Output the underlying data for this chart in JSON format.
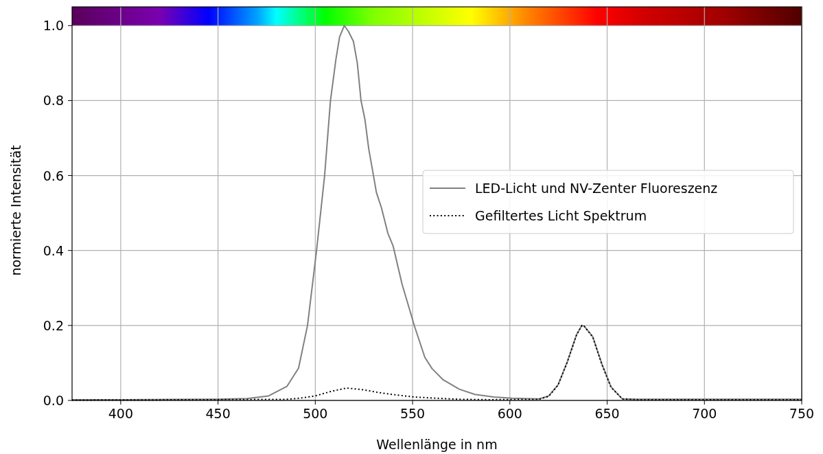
{
  "chart_data": {
    "type": "line",
    "xlabel": "Wellenlänge in nm",
    "ylabel": "normierte Intensität",
    "xlim": [
      375,
      750
    ],
    "xticks": [
      400,
      450,
      500,
      550,
      600,
      650,
      700,
      750
    ],
    "ylim": [
      0,
      1.05
    ],
    "yticks": [
      {
        "value": 0,
        "label": "0.0"
      },
      {
        "value": 0.2,
        "label": "0.2"
      },
      {
        "value": 0.4,
        "label": "0.4"
      },
      {
        "value": 0.6,
        "label": "0.6"
      },
      {
        "value": 0.8,
        "label": "0.8"
      },
      {
        "value": 1.0,
        "label": "1.0"
      }
    ],
    "grid": true,
    "legend": "right",
    "marker": "none",
    "series": [
      {
        "name": "LED-Licht und NV-Zenter Fluoreszenz",
        "color": "#808080",
        "line_style": "solid",
        "x": [
          375,
          400,
          450,
          465,
          476,
          485.5,
          491.4,
          496,
          500.6,
          504.8,
          507.8,
          510.6,
          512.5,
          514.9,
          517,
          519.6,
          521.6,
          523.5,
          525.5,
          527.5,
          529.4,
          531.4,
          534,
          537.3,
          540,
          544.6,
          551,
          556.3,
          560,
          565.7,
          574,
          582,
          591.7,
          601,
          615,
          620,
          624.8,
          629.5,
          634.3,
          637,
          638.2,
          642.6,
          647.3,
          652,
          657.8,
          665,
          700,
          750
        ],
        "values": [
          0.002,
          0.002,
          0.003,
          0.005,
          0.012,
          0.038,
          0.086,
          0.2,
          0.398,
          0.6,
          0.8,
          0.91,
          0.97,
          1.0,
          0.985,
          0.958,
          0.9,
          0.8,
          0.75,
          0.67,
          0.615,
          0.555,
          0.514,
          0.446,
          0.412,
          0.31,
          0.198,
          0.115,
          0.085,
          0.055,
          0.03,
          0.016,
          0.009,
          0.006,
          0.004,
          0.012,
          0.042,
          0.103,
          0.176,
          0.2,
          0.198,
          0.17,
          0.097,
          0.036,
          0.004,
          0.003,
          0.003,
          0.003
        ]
      },
      {
        "name": "Gefiltertes Licht Spektrum",
        "color": "#000000",
        "line_style": "dotted",
        "x": [
          375,
          450,
          485,
          492,
          500,
          508,
          516,
          524,
          532.6,
          541,
          551,
          562,
          574,
          590,
          615,
          620,
          624.8,
          629.5,
          634.3,
          637,
          638.2,
          642.6,
          647.3,
          652,
          657.8,
          665,
          700,
          750
        ],
        "values": [
          0.001,
          0.002,
          0.003,
          0.006,
          0.012,
          0.024,
          0.033,
          0.029,
          0.021,
          0.015,
          0.009,
          0.006,
          0.003,
          0.002,
          0.003,
          0.011,
          0.041,
          0.102,
          0.175,
          0.2,
          0.198,
          0.169,
          0.096,
          0.035,
          0.004,
          0.002,
          0.002,
          0.002
        ]
      }
    ]
  }
}
